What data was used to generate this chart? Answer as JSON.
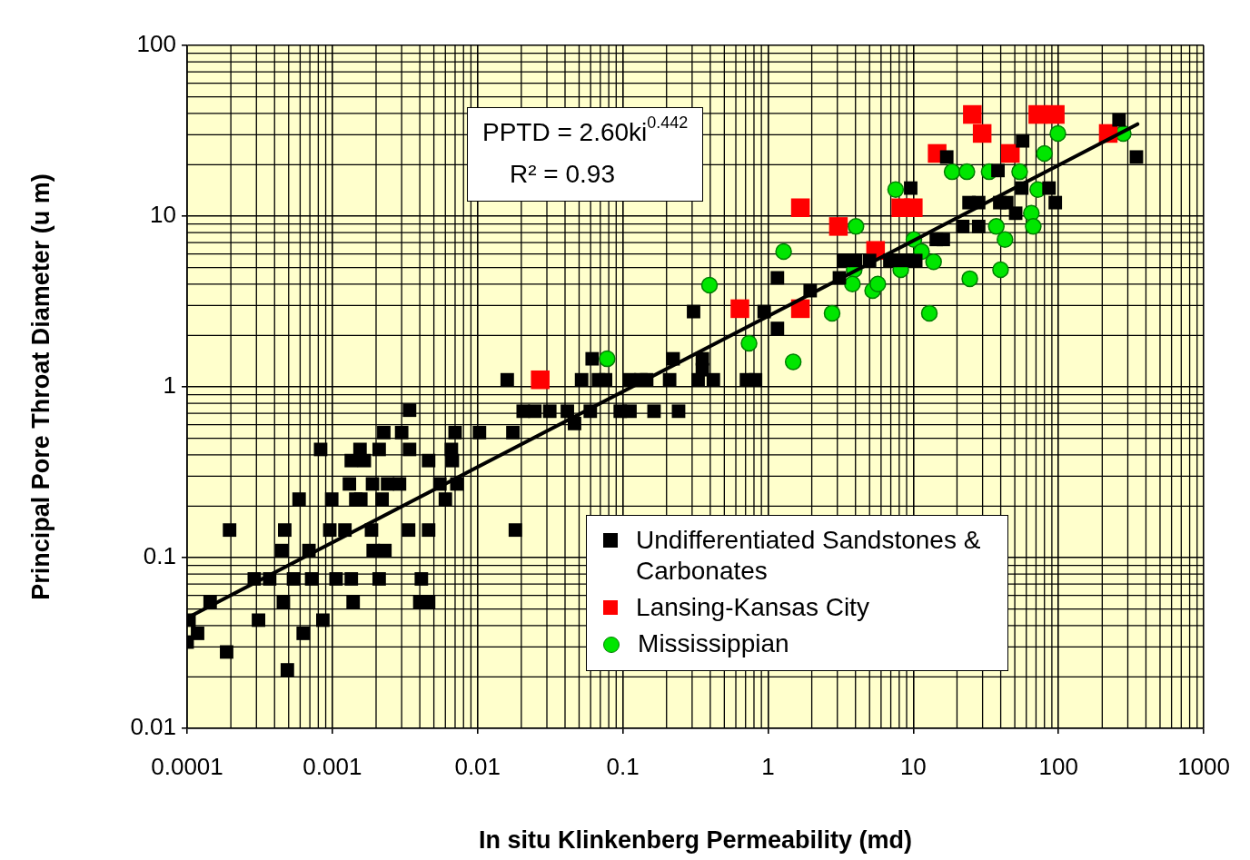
{
  "chart_data": {
    "type": "scatter",
    "xlabel": "In situ Klinkenberg Permeability (md)",
    "ylabel": "Principal Pore Throat Diameter (u m)",
    "annotations": [
      "PPTD = 2.60ki$^{0.442}$",
      "R² = 0.93"
    ],
    "log": "xy",
    "grid": true,
    "legend": "bottom right",
    "xlim": [
      0.0001,
      1000
    ],
    "xticks": [
      0.0001,
      0.001,
      0.01,
      0.1,
      1,
      10,
      100,
      1000
    ],
    "ylim": [
      0.01,
      100
    ],
    "yticks": [
      0.01,
      0.1,
      1,
      10,
      100
    ],
    "series": [
      {
        "name": "Undifferentiated Sandstones & Carbonates",
        "color": "#000000",
        "marker": "square",
        "x": [
          0.0034,
          0.00226,
          0.003,
          0.007,
          0.0103,
          0.00083,
          0.00155,
          0.0021,
          0.0034,
          0.0066,
          0.00135,
          0.00166,
          0.0046,
          0.0067,
          0.00131,
          0.00189,
          0.0024,
          0.0029,
          0.0055,
          0.0072,
          0.00059,
          0.00099,
          0.00145,
          0.00157,
          0.0022,
          0.006,
          0.000196,
          0.00047,
          0.00096,
          0.00122,
          0.00186,
          0.00335,
          0.0046,
          0.00045,
          0.00069,
          0.00191,
          0.0023,
          0.00029,
          0.00037,
          0.00054,
          0.00072,
          0.00106,
          0.00135,
          0.0021,
          0.0041,
          0.000144,
          0.00046,
          0.00139,
          0.004,
          0.0046,
          0.000103,
          0.00031,
          0.00086,
          0.000118,
          0.00063,
          0.0001,
          0.000187,
          0.00049,
          0.0206,
          0.0248,
          0.0314,
          0.0415,
          0.0597,
          0.096,
          0.112,
          0.164,
          0.242,
          0.0465,
          0.0175,
          0.016,
          0.052,
          0.068,
          0.076,
          0.111,
          0.133,
          0.146,
          0.21,
          0.33,
          0.42,
          0.71,
          0.82,
          0.0615,
          0.222,
          0.353,
          0.353,
          0.307,
          0.94,
          1.16,
          0.0182,
          1.16,
          1.95,
          3.1,
          3.3,
          4.0,
          5.0,
          6.9,
          8.5,
          10.4,
          14.4,
          16.1,
          9.6,
          17.0,
          24.2,
          28.2,
          21.9,
          28.2,
          39.4,
          44,
          38.3,
          56.6,
          55.8,
          86,
          95,
          50.7,
          261,
          344
        ],
        "values": [
          0.73,
          0.54,
          0.54,
          0.54,
          0.54,
          0.43,
          0.43,
          0.43,
          0.43,
          0.43,
          0.37,
          0.37,
          0.37,
          0.37,
          0.27,
          0.27,
          0.27,
          0.27,
          0.27,
          0.27,
          0.22,
          0.22,
          0.22,
          0.22,
          0.22,
          0.22,
          0.145,
          0.145,
          0.145,
          0.145,
          0.145,
          0.145,
          0.145,
          0.11,
          0.11,
          0.11,
          0.11,
          0.075,
          0.075,
          0.075,
          0.075,
          0.075,
          0.075,
          0.075,
          0.075,
          0.055,
          0.055,
          0.055,
          0.055,
          0.055,
          0.043,
          0.043,
          0.043,
          0.036,
          0.036,
          0.032,
          0.028,
          0.022,
          0.72,
          0.72,
          0.72,
          0.72,
          0.72,
          0.72,
          0.72,
          0.72,
          0.72,
          0.61,
          0.54,
          1.1,
          1.1,
          1.1,
          1.1,
          1.1,
          1.1,
          1.1,
          1.1,
          1.1,
          1.1,
          1.1,
          1.1,
          1.46,
          1.46,
          1.46,
          1.26,
          2.76,
          2.76,
          2.2,
          0.145,
          4.35,
          3.66,
          4.35,
          5.5,
          5.5,
          5.5,
          5.5,
          5.5,
          5.5,
          7.3,
          7.3,
          14.6,
          22.2,
          12.0,
          12.0,
          8.7,
          8.7,
          12.0,
          12.0,
          18.5,
          27.6,
          14.6,
          14.6,
          12.0,
          10.4,
          36.6,
          22.2
        ]
      },
      {
        "name": "Lansing-Kansas City",
        "color": "#ff0000",
        "marker": "square",
        "x": [
          0.027,
          0.64,
          1.67,
          1.67,
          3.05,
          5.5,
          8.2,
          10,
          14.6,
          25.5,
          29.8,
          46.6,
          72,
          95,
          220
        ],
        "values": [
          1.1,
          2.87,
          11.2,
          2.87,
          8.7,
          6.3,
          11.2,
          11.2,
          23.3,
          39.4,
          30.5,
          23.3,
          39.4,
          39.4,
          30.5
        ]
      },
      {
        "name": "Mississippian",
        "color": "#00e600",
        "marker": "circle",
        "x": [
          0.078,
          0.395,
          0.74,
          1.28,
          1.49,
          2.76,
          4.03,
          3.92,
          3.81,
          5.25,
          5.7,
          7.56,
          8.2,
          10.1,
          11.4,
          13.8,
          12.9,
          24.5,
          18.5,
          23.4,
          33.3,
          54,
          99,
          80,
          72,
          65,
          67,
          37.3,
          42.8,
          39.9,
          279
        ],
        "values": [
          1.46,
          3.94,
          1.8,
          6.2,
          1.4,
          2.7,
          8.7,
          4.85,
          4.0,
          3.66,
          4.0,
          14.3,
          4.85,
          7.3,
          6.2,
          5.4,
          2.7,
          4.3,
          18.2,
          18.2,
          18.2,
          18.2,
          30.5,
          23.3,
          14.3,
          10.4,
          8.7,
          8.7,
          7.3,
          4.85,
          30.5
        ]
      },
      {
        "type": "line",
        "color": "#000000",
        "marker": "none",
        "line_style": "solid",
        "x": [
          0.0001,
          350
        ],
        "values": [
          0.0443,
          34.6
        ]
      }
    ]
  }
}
